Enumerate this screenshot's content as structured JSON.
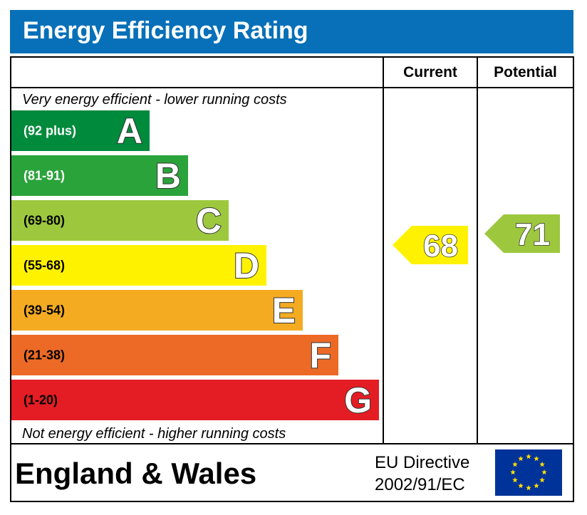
{
  "header": {
    "title": "Energy Efficiency Rating"
  },
  "columns": {
    "current": "Current",
    "potential": "Potential"
  },
  "notes": {
    "top": "Very energy efficient - lower running costs",
    "bottom": "Not energy efficient - higher running costs"
  },
  "footer": {
    "country": "England & Wales",
    "directive_line1": "EU Directive",
    "directive_line2": "2002/91/EC"
  },
  "colors": {
    "header_bg": "#0770b8",
    "eu_flag_bg": "#003399",
    "eu_flag_stars": "#ffdd00"
  },
  "chart_data": {
    "type": "bar",
    "title": "Energy Efficiency Rating",
    "categories": [
      "A",
      "B",
      "C",
      "D",
      "E",
      "F",
      "G"
    ],
    "bands": [
      {
        "letter": "A",
        "range": "(92 plus)",
        "min": 92,
        "max": 100,
        "color": "#008a3c",
        "range_color": "#ffffff"
      },
      {
        "letter": "B",
        "range": "(81-91)",
        "min": 81,
        "max": 91,
        "color": "#2aa33a",
        "range_color": "#ffffff"
      },
      {
        "letter": "C",
        "range": "(69-80)",
        "min": 69,
        "max": 80,
        "color": "#9dc83e",
        "range_color": "#000000"
      },
      {
        "letter": "D",
        "range": "(55-68)",
        "min": 55,
        "max": 68,
        "color": "#fff200",
        "range_color": "#000000"
      },
      {
        "letter": "E",
        "range": "(39-54)",
        "min": 39,
        "max": 54,
        "color": "#f4ab22",
        "range_color": "#000000"
      },
      {
        "letter": "F",
        "range": "(21-38)",
        "min": 21,
        "max": 38,
        "color": "#ec6a26",
        "range_color": "#000000"
      },
      {
        "letter": "G",
        "range": "(1-20)",
        "min": 1,
        "max": 20,
        "color": "#e31d23",
        "range_color": "#000000"
      }
    ],
    "series": [
      {
        "name": "Current",
        "value": 68,
        "band": "D",
        "color": "#fff200"
      },
      {
        "name": "Potential",
        "value": 71,
        "band": "C",
        "color": "#9dc83e"
      }
    ]
  }
}
